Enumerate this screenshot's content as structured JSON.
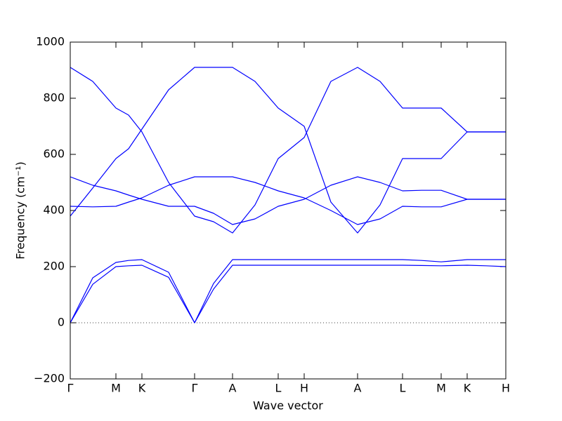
{
  "chart_data": {
    "type": "line",
    "xlabel": "Wave vector",
    "ylabel": "Frequency (cm⁻¹)",
    "x": [
      0,
      0.32,
      0.65,
      0.83,
      1.02,
      1.4,
      1.77,
      2.04,
      2.31,
      2.63,
      2.96,
      3.33,
      3.71,
      4.09,
      4.41,
      4.73,
      5.0,
      5.28,
      5.65,
      5.92,
      6.2
    ],
    "series": [
      {
        "color": "#0000ff",
        "values": [
          0,
          137,
          200,
          203,
          205,
          162,
          0,
          120,
          205,
          205,
          205,
          205,
          205,
          205,
          205,
          205,
          204,
          203,
          205,
          203,
          200
        ]
      },
      {
        "color": "#0000ff",
        "values": [
          0,
          160,
          215,
          222,
          225,
          180,
          0,
          140,
          225,
          225,
          225,
          225,
          225,
          225,
          225,
          225,
          222,
          217,
          225,
          225,
          225
        ]
      },
      {
        "color": "#0000ff",
        "values": [
          380,
          480,
          585,
          620,
          690,
          830,
          910,
          910,
          910,
          860,
          765,
          700,
          430,
          320,
          420,
          585,
          585,
          585,
          680,
          680,
          680
        ]
      },
      {
        "color": "#0000ff",
        "values": [
          910,
          860,
          765,
          740,
          680,
          500,
          380,
          360,
          320,
          420,
          585,
          660,
          860,
          910,
          860,
          765,
          765,
          765,
          680,
          680,
          680
        ]
      },
      {
        "color": "#0000ff",
        "values": [
          520,
          490,
          470,
          455,
          440,
          415,
          415,
          390,
          350,
          370,
          415,
          440,
          490,
          520,
          500,
          470,
          472,
          472,
          440,
          440,
          440
        ]
      },
      {
        "color": "#0000ff",
        "values": [
          415,
          413,
          415,
          430,
          445,
          490,
          520,
          520,
          520,
          500,
          470,
          445,
          400,
          350,
          370,
          415,
          413,
          413,
          440,
          440,
          440
        ]
      }
    ],
    "xlim": [
      0,
      6.2
    ],
    "xticks": [
      {
        "value": 0,
        "label": "Γ"
      },
      {
        "value": 0.65,
        "label": "M"
      },
      {
        "value": 1.02,
        "label": "K"
      },
      {
        "value": 1.77,
        "label": "Γ"
      },
      {
        "value": 2.31,
        "label": "A"
      },
      {
        "value": 2.96,
        "label": "L"
      },
      {
        "value": 3.33,
        "label": "H"
      },
      {
        "value": 4.09,
        "label": "A"
      },
      {
        "value": 4.73,
        "label": "L"
      },
      {
        "value": 5.28,
        "label": "M"
      },
      {
        "value": 5.65,
        "label": "K"
      },
      {
        "value": 6.2,
        "label": "H"
      }
    ],
    "ylim": [
      -200,
      1000
    ],
    "yticks": [
      {
        "value": -200,
        "label": "−200"
      },
      0,
      200,
      400,
      600,
      800,
      1000
    ],
    "zero_line": true
  }
}
